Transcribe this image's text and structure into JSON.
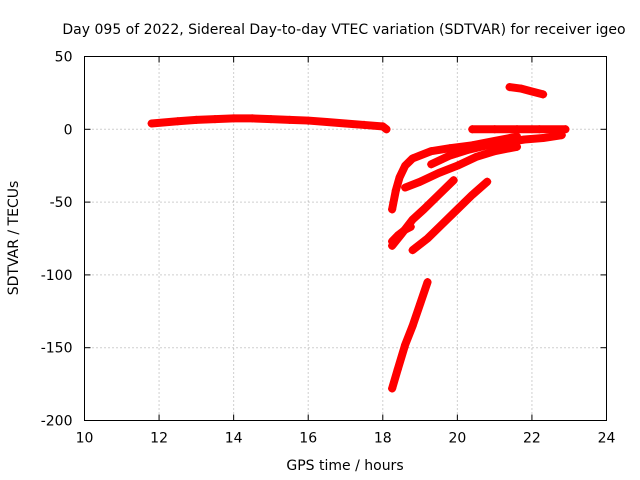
{
  "chart_data": {
    "type": "scatter",
    "title": "Day 095 of 2022, Sidereal Day-to-day VTEC variation (SDTVAR) for receiver igeo",
    "xlabel": "GPS time / hours",
    "ylabel": "SDTVAR / TECUs",
    "xlim": [
      10,
      24
    ],
    "ylim": [
      -200,
      50
    ],
    "xticks": [
      10,
      12,
      14,
      16,
      18,
      20,
      22,
      24
    ],
    "yticks": [
      -200,
      -150,
      -100,
      -50,
      0,
      50
    ],
    "grid": true,
    "marker": "+",
    "color": "#ff0000",
    "series": [
      {
        "x": [
          11.8,
          12.5,
          13.0,
          13.5,
          14.0,
          14.5,
          15.0,
          15.5,
          16.0,
          16.5,
          17.0,
          17.5,
          18.0,
          18.1
        ],
        "y": [
          4,
          5.5,
          6.5,
          7,
          7.5,
          7.5,
          7,
          6.5,
          6,
          5,
          4,
          3,
          2,
          0
        ]
      },
      {
        "x": [
          18.25,
          18.35,
          18.45,
          18.6,
          18.8,
          19.0,
          19.3,
          19.8,
          20.4,
          21.0,
          21.6
        ],
        "y": [
          -55,
          -42,
          -33,
          -25,
          -20,
          -18,
          -15,
          -13,
          -11,
          -8,
          -5
        ]
      },
      {
        "x": [
          18.6,
          19.0,
          19.5,
          20.0,
          20.5,
          21.0,
          21.6
        ],
        "y": [
          -40,
          -36,
          -30,
          -25,
          -19,
          -15,
          -12
        ]
      },
      {
        "x": [
          19.3,
          19.8,
          20.3,
          20.8,
          21.3,
          21.8,
          22.3,
          22.8
        ],
        "y": [
          -24,
          -18,
          -14,
          -11,
          -9,
          -7,
          -6,
          -4
        ]
      },
      {
        "x": [
          20.4,
          21.0,
          21.6,
          22.2,
          22.9
        ],
        "y": [
          0,
          0,
          0,
          0,
          0
        ]
      },
      {
        "x": [
          21.4,
          21.7,
          22.0,
          22.3
        ],
        "y": [
          29,
          28,
          26,
          24
        ]
      },
      {
        "x": [
          18.25,
          18.4,
          18.6,
          18.75
        ],
        "y": [
          -77,
          -73,
          -69,
          -67
        ]
      },
      {
        "x": [
          18.25,
          18.5,
          18.8,
          19.1,
          19.5,
          19.9
        ],
        "y": [
          -80,
          -72,
          -62,
          -55,
          -45,
          -35
        ]
      },
      {
        "x": [
          18.8,
          19.2,
          19.6,
          20.0,
          20.4,
          20.8
        ],
        "y": [
          -83,
          -75,
          -65,
          -55,
          -45,
          -36
        ]
      },
      {
        "x": [
          18.25,
          18.4,
          18.6,
          18.8,
          19.0,
          19.2
        ],
        "y": [
          -178,
          -165,
          -148,
          -135,
          -120,
          -105
        ]
      }
    ]
  }
}
